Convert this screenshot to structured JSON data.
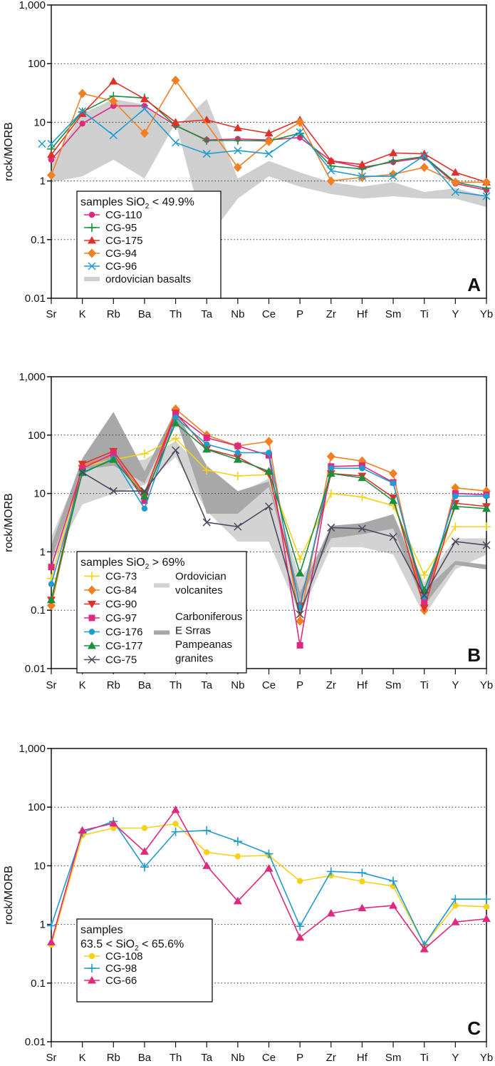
{
  "chart_data": [
    {
      "type": "line",
      "panel": "A",
      "ylabel": "rock/MORB",
      "yscale": "log",
      "ylim": [
        0.01,
        1000
      ],
      "yticks": [
        "0.01",
        "0.1",
        "1",
        "10",
        "100",
        "1,000"
      ],
      "categories": [
        "Sr",
        "K",
        "Rb",
        "Ba",
        "Th",
        "Ta",
        "Nb",
        "Ce",
        "P",
        "Zr",
        "Hf",
        "Sm",
        "Ti",
        "Y",
        "Yb"
      ],
      "legend_title": "samples SiO",
      "legend_title_sub": "2",
      "legend_title_suffix": " < 49.9%",
      "legend_position": "bottom-left",
      "series": [
        {
          "name": "CG-110",
          "color": "#e0287f",
          "marker": "circle",
          "values": [
            2.3,
            9.5,
            19,
            19,
            8.8,
            5,
            5.2,
            5,
            5.5,
            2.2,
            1.7,
            2.1,
            2.5,
            0.9,
            0.7
          ]
        },
        {
          "name": "CG-95",
          "color": "#1a8f3c",
          "marker": "plus",
          "values": [
            3.5,
            15,
            28,
            26,
            8.8,
            4.9,
            4.9,
            4.8,
            6.5,
            1.8,
            1.6,
            2.2,
            2.6,
            0.95,
            0.75
          ]
        },
        {
          "name": "CG-175",
          "color": "#e0302a",
          "marker": "triangle",
          "values": [
            2.8,
            14,
            50,
            25,
            10,
            11,
            8,
            6.5,
            11,
            2.2,
            1.9,
            3,
            2.9,
            1.4,
            0.95
          ]
        },
        {
          "name": "CG-94",
          "color": "#f08023",
          "marker": "diamond",
          "values": [
            1.25,
            31,
            23,
            6.5,
            52,
            null,
            1.7,
            4.7,
            10,
            1,
            1.15,
            1.3,
            1.7,
            0.95,
            0.95
          ]
        },
        {
          "name": "CG-96",
          "color": "#1e9bd1",
          "marker": "x",
          "values": [
            4.3,
            15.5,
            6,
            17,
            4.5,
            2.9,
            3.3,
            2.9,
            6.8,
            1.5,
            1.2,
            1.2,
            2.7,
            0.65,
            0.55
          ]
        }
      ],
      "bands": [
        {
          "name": "ordovician basalts",
          "color": "#cfcfcf",
          "upper": [
            2,
            14,
            25,
            20,
            8,
            25,
            1.1,
            2.2,
            1.4,
            0.95,
            0.8,
            0.95,
            0.65,
            0.75,
            0.55
          ],
          "lower": [
            0.95,
            1.2,
            2.3,
            1.1,
            10,
            0.1,
            0.5,
            1.2,
            0.8,
            0.6,
            0.5,
            0.55,
            0.5,
            0.5,
            0.36
          ]
        }
      ],
      "panel_letter": "A"
    },
    {
      "type": "line",
      "panel": "B",
      "ylabel": "rock/MORB",
      "yscale": "log",
      "ylim": [
        0.01,
        1000
      ],
      "yticks": [
        "0.01",
        "0.1",
        "1",
        "10",
        "100",
        "1,000"
      ],
      "categories": [
        "Sr",
        "K",
        "Rb",
        "Ba",
        "Th",
        "Ta",
        "Nb",
        "Ce",
        "P",
        "Zr",
        "Hf",
        "Sm",
        "Ti",
        "Y",
        "Yb"
      ],
      "legend_title": "samples SiO",
      "legend_title_sub": "2",
      "legend_title_suffix": " > 69%",
      "legend_position": "bottom-left",
      "series": [
        {
          "name": "CG-73",
          "color": "#f5d21a",
          "marker": "plus",
          "values": [
            0.35,
            29,
            38,
            48,
            88,
            25,
            20,
            21,
            0.75,
            10,
            8.7,
            6.2,
            0.4,
            2.7,
            2.7
          ]
        },
        {
          "name": "CG-84",
          "color": "#f08023",
          "marker": "diamond",
          "values": [
            0.12,
            30,
            45,
            9.5,
            280,
            100,
            65,
            78,
            0.065,
            43,
            36,
            22,
            0.1,
            12.5,
            11
          ]
        },
        {
          "name": "CG-90",
          "color": "#e0302a",
          "marker": "triangle-down",
          "values": [
            0.15,
            32,
            53,
            10,
            240,
            58,
            42,
            22,
            0.12,
            22,
            20,
            8.5,
            0.11,
            6.8,
            6
          ]
        },
        {
          "name": "CG-97",
          "color": "#e0287f",
          "marker": "square",
          "values": [
            0.55,
            27,
            48,
            7.5,
            230,
            90,
            65,
            45,
            0.025,
            29,
            30,
            15.5,
            0.14,
            10,
            9.5
          ]
        },
        {
          "name": "CG-176",
          "color": "#1e9bd1",
          "marker": "circle",
          "values": [
            0.28,
            22,
            40,
            5.5,
            200,
            70,
            50,
            50,
            0.11,
            27,
            27,
            15,
            0.17,
            9,
            9
          ]
        },
        {
          "name": "CG-177",
          "color": "#1a8f3c",
          "marker": "triangle",
          "values": [
            0.15,
            23,
            38,
            9,
            160,
            57,
            38,
            24,
            0.43,
            22,
            18.5,
            7.5,
            0.22,
            6,
            5.5
          ]
        },
        {
          "name": "CG-75",
          "color": "#4a4a5e",
          "marker": "x",
          "values": [
            null,
            23,
            11,
            11,
            55,
            3.2,
            2.7,
            6,
            0.085,
            2.6,
            2.5,
            1.8,
            0.18,
            1.5,
            1.3
          ]
        }
      ],
      "bands": [
        {
          "name": "Ordovician volcanites",
          "color": "#d3d3d3",
          "upper": [
            1.8,
            32,
            33,
            38,
            80,
            22,
            10,
            18,
            0.35,
            1.8,
            2.2,
            4.5,
            0.3,
            1.7,
            1.7
          ],
          "lower": [
            0.6,
            6.5,
            10,
            14,
            42,
            5,
            1.5,
            1.5,
            0.08,
            1.2,
            1.2,
            0.9,
            0.08,
            0.5,
            0.9
          ]
        },
        {
          "name": "Carboniferous E Srras Pampeanas granites",
          "color": "#a8a8a8",
          "upper": [
            1.3,
            40,
            250,
            24,
            260,
            30,
            11,
            16,
            0.2,
            2.8,
            3.1,
            4.4,
            0.22,
            0.7,
            0.6
          ],
          "lower": [
            0.7,
            26,
            30,
            15,
            200,
            4.5,
            4.5,
            13,
            0.15,
            1.7,
            2,
            2.5,
            0.12,
            0.6,
            0.5
          ]
        }
      ],
      "panel_letter": "B"
    },
    {
      "type": "line",
      "panel": "C",
      "ylabel": "rock/MORB",
      "yscale": "log",
      "ylim": [
        0.01,
        1000
      ],
      "yticks": [
        "0.01",
        "0.1",
        "1",
        "10",
        "100",
        "1,000"
      ],
      "categories": [
        "Sr",
        "K",
        "Rb",
        "Ba",
        "Th",
        "Ta",
        "Nb",
        "Ce",
        "P",
        "Zr",
        "Hf",
        "Sm",
        "Ti",
        "Y",
        "Yb"
      ],
      "legend_title": "samples",
      "legend_title_line2": "63.5 < SiO",
      "legend_title_sub": "2",
      "legend_title_suffix": " < 65.6%",
      "legend_position": "bottom-left",
      "series": [
        {
          "name": "CG-108",
          "color": "#f5d21a",
          "marker": "circle",
          "values": [
            0.45,
            33,
            44,
            44,
            52,
            17,
            14.5,
            15,
            5.5,
            6.8,
            5.4,
            4.5,
            0.45,
            2.1,
            2
          ]
        },
        {
          "name": "CG-98",
          "color": "#1e9bd1",
          "marker": "plus",
          "values": [
            0.95,
            37,
            57,
            9.5,
            38,
            40,
            26,
            16,
            0.93,
            8,
            7.6,
            5.5,
            0.45,
            2.7,
            2.7
          ]
        },
        {
          "name": "CG-66",
          "color": "#e0287f",
          "marker": "triangle",
          "values": [
            0.5,
            40,
            53,
            17.5,
            90,
            10,
            2.5,
            9,
            0.6,
            1.55,
            1.9,
            2.1,
            0.38,
            1.1,
            1.25
          ]
        }
      ],
      "bands": [],
      "panel_letter": "C"
    }
  ]
}
